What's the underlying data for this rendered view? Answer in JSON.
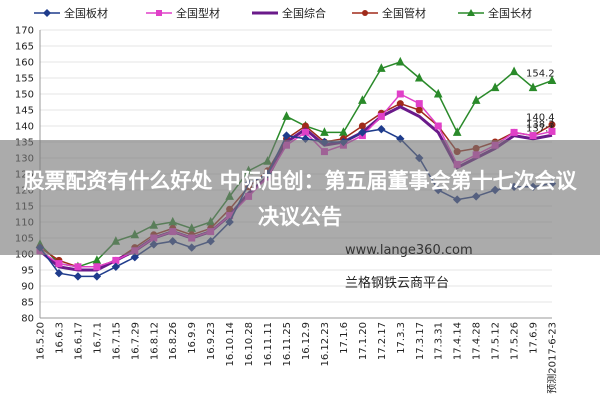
{
  "chart_data": {
    "type": "line",
    "categories": [
      "16.5.20",
      "16.6.3",
      "16.6.17",
      "16.7.1",
      "16.7.15",
      "16.7.29",
      "16.8.12",
      "16.8.26",
      "16.9.9",
      "16.9.23",
      "16.10.14",
      "16.10.28",
      "16.11.11",
      "16.11.25",
      "16.12.9",
      "16.12.23",
      "17.1.6",
      "17.1.20",
      "17.2.17",
      "17.3.3",
      "17.3.17",
      "17.3.31",
      "17.4.14",
      "17.4.28",
      "17.5.12",
      "17.5.26",
      "17.6.9",
      "预测2017-6-23"
    ],
    "series": [
      {
        "name": "全国板材",
        "color": "#1f3c8c",
        "marker": "diamond",
        "values": [
          102,
          94,
          93,
          93,
          96,
          99,
          103,
          104,
          102,
          104,
          110,
          122,
          125,
          137,
          136,
          135,
          135,
          138,
          139,
          136,
          130,
          120,
          117,
          118,
          120,
          121,
          121,
          122
        ]
      },
      {
        "name": "全国型材",
        "color": "#e040c8",
        "marker": "square",
        "values": [
          101,
          97,
          96,
          96,
          98,
          101,
          105,
          107,
          105,
          107,
          112,
          118,
          124,
          134,
          138,
          132,
          134,
          137,
          143,
          150,
          147,
          140,
          128,
          131,
          134,
          138,
          137,
          138.3
        ],
        "label_last": true
      },
      {
        "name": "全国综合",
        "color": "#6a1a8a",
        "marker": "none",
        "values": [
          101,
          96,
          95,
          95,
          98,
          101,
          105,
          107,
          105,
          107,
          112,
          119,
          124,
          135,
          139,
          134,
          135,
          138,
          143,
          146,
          143,
          138,
          127,
          130,
          133,
          137,
          136,
          137.1
        ],
        "label_last": true
      },
      {
        "name": "全国管材",
        "color": "#a02a1a",
        "marker": "circle",
        "values": [
          102,
          98,
          96,
          96,
          98,
          102,
          106,
          108,
          106,
          108,
          114,
          121,
          126,
          136,
          140,
          135,
          136,
          140,
          144,
          147,
          145,
          140,
          132,
          133,
          135,
          138,
          137,
          140.4
        ],
        "label_last": true
      },
      {
        "name": "全国长材",
        "color": "#2a8a2a",
        "marker": "triangle",
        "values": [
          103,
          97,
          96,
          98,
          104,
          106,
          109,
          110,
          108,
          110,
          118,
          126,
          129,
          143,
          140,
          138,
          138,
          148,
          158,
          160,
          155,
          150,
          138,
          148,
          152,
          157,
          152,
          154.2
        ],
        "label_last": true
      }
    ],
    "ylim": [
      80,
      170
    ],
    "yticks": [
      80,
      85,
      90,
      95,
      100,
      105,
      110,
      115,
      120,
      125,
      130,
      135,
      140,
      145,
      150,
      155,
      160,
      165,
      170
    ],
    "grid": true
  },
  "overlay": {
    "headline": "股票配资有什么好处 中际旭创：第五届董事会第十七次会议决议公告",
    "site": "www.lange360.com",
    "brand": "兰格钢铁云商平台"
  }
}
